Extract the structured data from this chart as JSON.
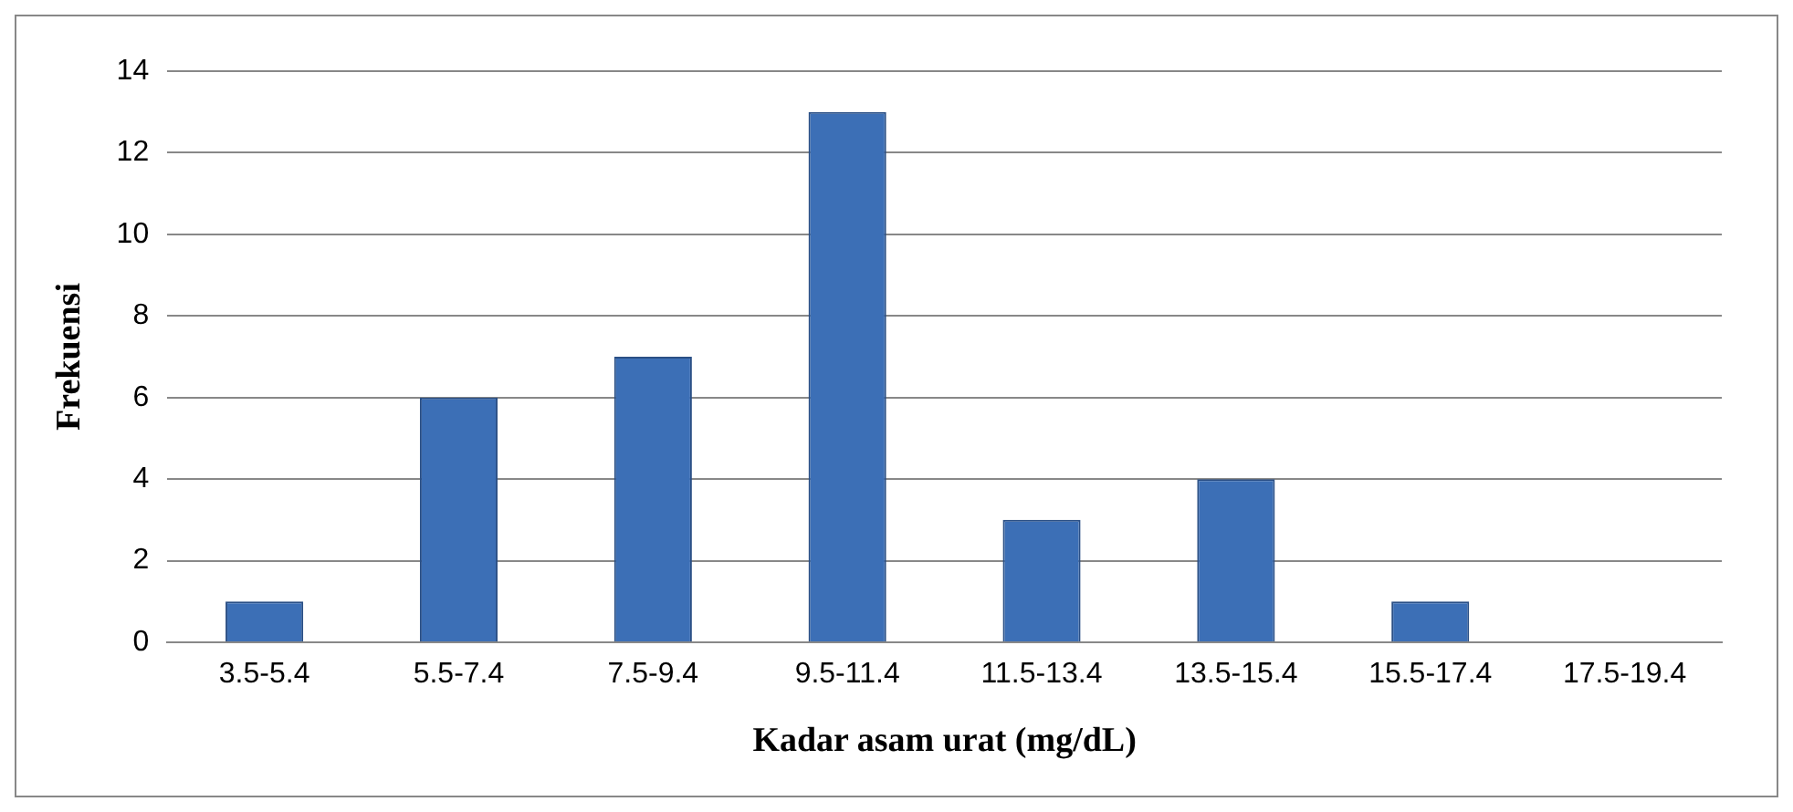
{
  "chart_data": {
    "type": "bar",
    "xlabel": "Kadar asam urat (mg/dL)",
    "ylabel": "Frekuensi",
    "categories": [
      "3.5-5.4",
      "5.5-7.4",
      "7.5-9.4",
      "9.5-11.4",
      "11.5-13.4",
      "13.5-15.4",
      "15.5-17.4",
      "17.5-19.4"
    ],
    "values": [
      1,
      6,
      7,
      13,
      3,
      4,
      1,
      0
    ],
    "color": "#3c6fb6",
    "ylim": [
      0,
      14
    ],
    "yticks": [
      0,
      2,
      4,
      6,
      8,
      10,
      12,
      14
    ],
    "grid": "y",
    "legend": false
  }
}
